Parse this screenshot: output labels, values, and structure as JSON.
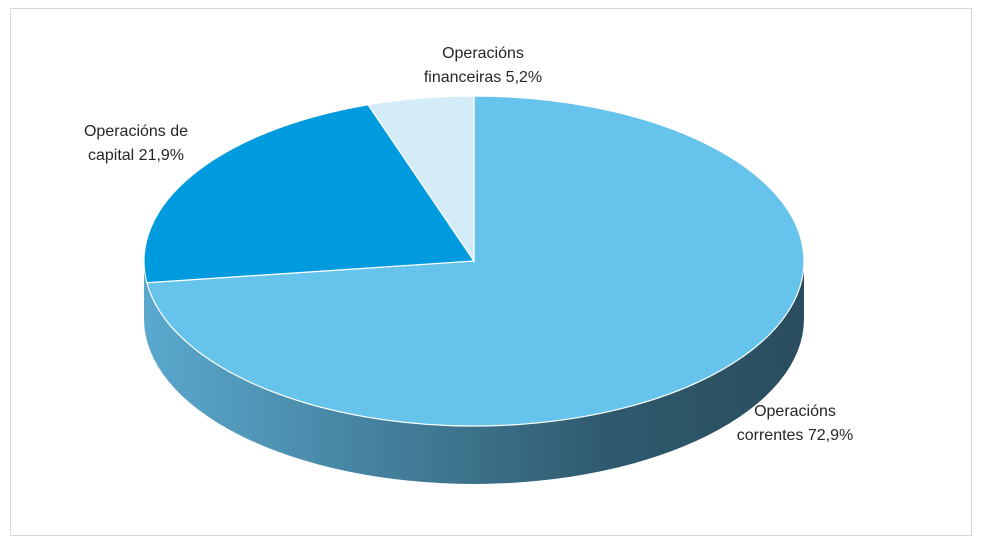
{
  "chart_data": {
    "type": "pie",
    "style": "3d",
    "title": "",
    "series": [
      {
        "values": [
          72.9,
          21.9,
          5.2
        ],
        "categories": [
          "Operacións correntes",
          "Operacións de capital",
          "Operacións financeiras"
        ]
      }
    ],
    "slices": [
      {
        "key": "correntes",
        "label_lines": [
          "Operacións",
          "correntes 72,9%"
        ],
        "value": 72.9,
        "color": "#66c3eb"
      },
      {
        "key": "capital",
        "label_lines": [
          "Operacións de",
          "capital 21,9%"
        ],
        "value": 21.9,
        "color": "#009bdf"
      },
      {
        "key": "financeiras",
        "label_lines": [
          "Operacións",
          "financeiras 5,2%"
        ],
        "value": 5.2,
        "color": "#d3ecf8"
      }
    ],
    "legend": "none",
    "side_gradient": [
      "#5aa9cf",
      "#2a4d5e"
    ]
  }
}
